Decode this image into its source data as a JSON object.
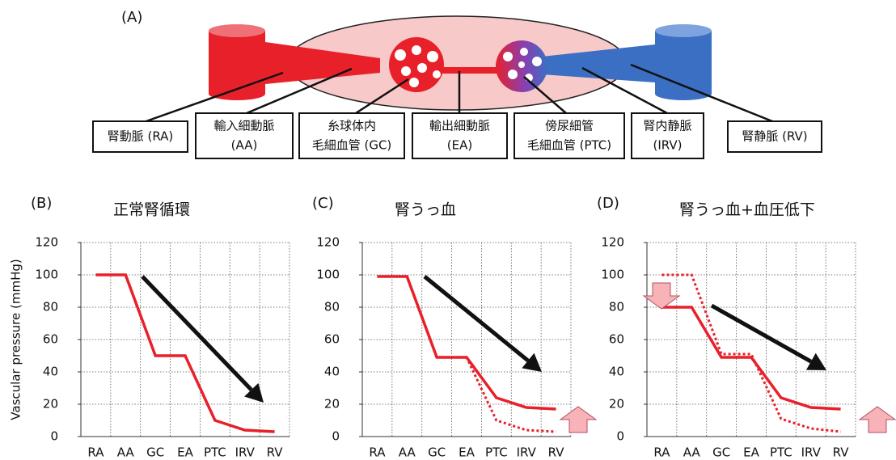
{
  "diagram": {
    "label": "(A)",
    "boxes": [
      [
        "腎動脈 (RA)"
      ],
      [
        "輸入細動脈",
        "(AA)"
      ],
      [
        "糸球体内",
        "毛細血管 (GC)"
      ],
      [
        "輸出細動脈",
        "(EA)"
      ],
      [
        "傍尿細管",
        "毛細血管 (PTC)"
      ],
      [
        "腎内静脈",
        "(IRV)"
      ],
      [
        "腎静脈 (RV)"
      ]
    ]
  },
  "chart_data": [
    {
      "type": "line",
      "panel": "(B)",
      "title": "正常腎循環",
      "y_label": "Vascular pressure (mmHg)",
      "categories": [
        "RA",
        "AA",
        "GC",
        "EA",
        "PTC",
        "IRV",
        "RV"
      ],
      "series": [
        {
          "color": "#e8202a",
          "line_style": "solid",
          "values": [
            100,
            100,
            50,
            50,
            10,
            4,
            3
          ]
        }
      ],
      "ylim": [
        0,
        120
      ],
      "yticks": [
        0,
        20,
        40,
        60,
        80,
        100,
        120
      ],
      "grid": true
    },
    {
      "type": "line",
      "panel": "(C)",
      "title": "腎うっ血",
      "categories": [
        "RA",
        "AA",
        "GC",
        "EA",
        "PTC",
        "IRV",
        "RV"
      ],
      "series": [
        {
          "color": "#e8202a",
          "line_style": "dotted",
          "values": [
            99,
            99,
            49,
            49,
            10,
            4,
            3
          ]
        },
        {
          "color": "#e8202a",
          "line_style": "solid",
          "values": [
            99,
            99,
            49,
            49,
            24,
            18,
            17
          ]
        }
      ],
      "ylim": [
        0,
        120
      ],
      "yticks": [
        0,
        20,
        40,
        60,
        80,
        100,
        120
      ],
      "grid": true
    },
    {
      "type": "line",
      "panel": "(D)",
      "title": "腎うっ血+血圧低下",
      "categories": [
        "RA",
        "AA",
        "GC",
        "EA",
        "PTC",
        "IRV",
        "RV"
      ],
      "series": [
        {
          "color": "#e8202a",
          "line_style": "dotted",
          "values": [
            100,
            100,
            51,
            51,
            11,
            5,
            3
          ]
        },
        {
          "color": "#e8202a",
          "line_style": "solid",
          "values": [
            80,
            80,
            49,
            49,
            24,
            18,
            17
          ]
        }
      ],
      "ylim": [
        0,
        120
      ],
      "yticks": [
        0,
        20,
        40,
        60,
        80,
        100,
        120
      ],
      "grid": true
    }
  ]
}
